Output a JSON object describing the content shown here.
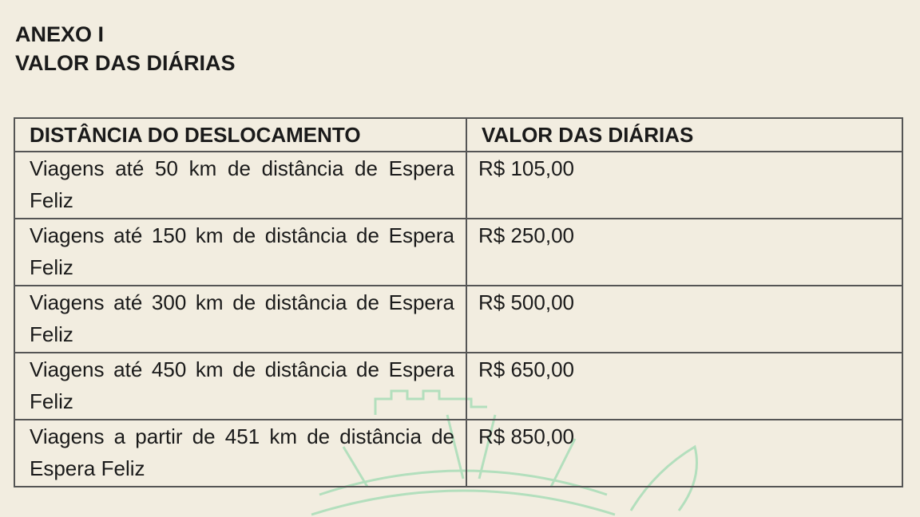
{
  "heading": {
    "line1": "ANEXO I",
    "line2": "VALOR DAS DIÁRIAS"
  },
  "table": {
    "headers": [
      "DISTÂNCIA DO DESLOCAMENTO",
      "VALOR DAS DIÁRIAS"
    ],
    "rows": [
      {
        "distance": "Viagens até 50 km de distância de Espera Feliz",
        "value": "R$ 105,00"
      },
      {
        "distance": "Viagens até 150 km de distância de Espera Feliz",
        "value": "R$ 250,00"
      },
      {
        "distance": "Viagens até 300 km de distância de Espera Feliz",
        "value": "R$ 500,00"
      },
      {
        "distance": "Viagens até 450 km de distância de Espera Feliz",
        "value": "R$ 650,00"
      },
      {
        "distance": "Viagens a partir de 451 km de distância de Espera Feliz",
        "value": "R$ 850,00"
      }
    ]
  },
  "colors": {
    "paper": "#f2ede0",
    "watermark": "#a8dcb4"
  }
}
